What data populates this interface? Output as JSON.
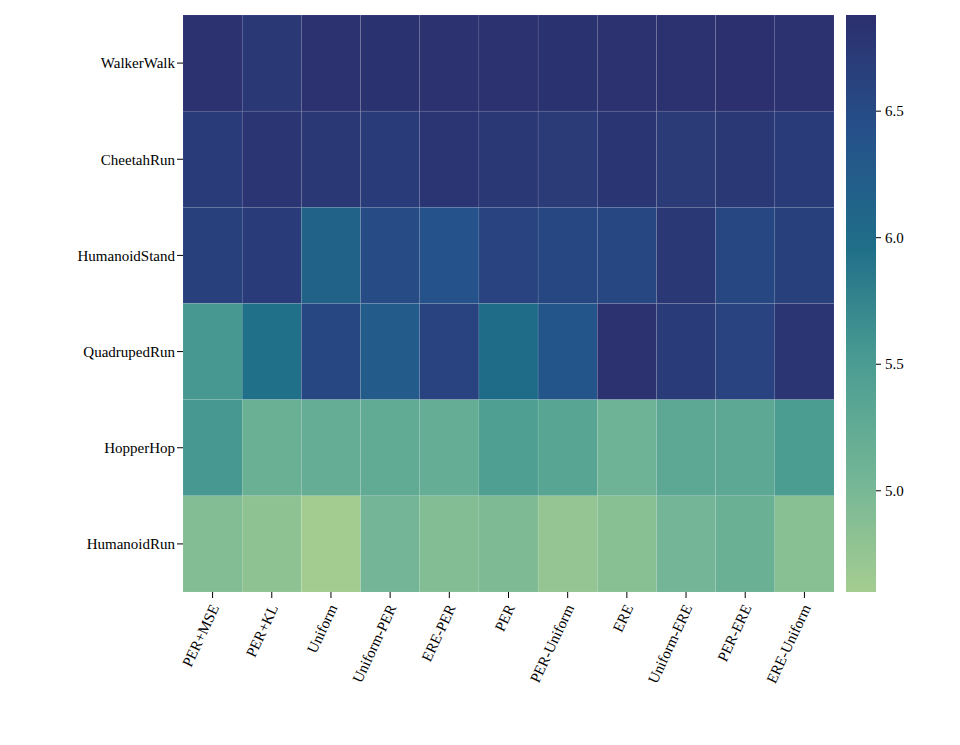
{
  "chart_data": {
    "type": "heatmap",
    "x_categories": [
      "PER+MSE",
      "PER+KL",
      "Uniform",
      "Uniform-PER",
      "ERE-PER",
      "PER",
      "PER-Uniform",
      "ERE",
      "Uniform-ERE",
      "PER-ERE",
      "ERE-Uniform"
    ],
    "y_categories": [
      "WalkerWalk",
      "CheetahRun",
      "HumanoidStand",
      "QuadrupedRun",
      "HopperHop",
      "HumanoidRun"
    ],
    "values": [
      [
        6.85,
        6.75,
        6.85,
        6.84,
        6.85,
        6.85,
        6.84,
        6.85,
        6.85,
        6.86,
        6.85
      ],
      [
        6.7,
        6.8,
        6.75,
        6.7,
        6.8,
        6.75,
        6.72,
        6.78,
        6.72,
        6.75,
        6.7
      ],
      [
        6.65,
        6.7,
        6.15,
        6.5,
        6.4,
        6.6,
        6.55,
        6.55,
        6.75,
        6.55,
        6.65
      ],
      [
        5.55,
        5.95,
        6.55,
        6.25,
        6.6,
        6.0,
        6.35,
        6.85,
        6.7,
        6.6,
        6.8
      ],
      [
        5.55,
        5.15,
        5.2,
        5.25,
        5.2,
        5.45,
        5.35,
        5.1,
        5.3,
        5.3,
        5.5
      ],
      [
        4.9,
        4.8,
        4.62,
        5.05,
        4.9,
        4.95,
        4.75,
        4.85,
        5.05,
        5.15,
        4.85
      ]
    ],
    "colorbar": {
      "range": [
        4.6,
        6.88
      ],
      "ticks": [
        {
          "value": 5,
          "label": "5.0"
        },
        5.5,
        {
          "value": 6,
          "label": "6.0"
        },
        6.5
      ]
    }
  }
}
